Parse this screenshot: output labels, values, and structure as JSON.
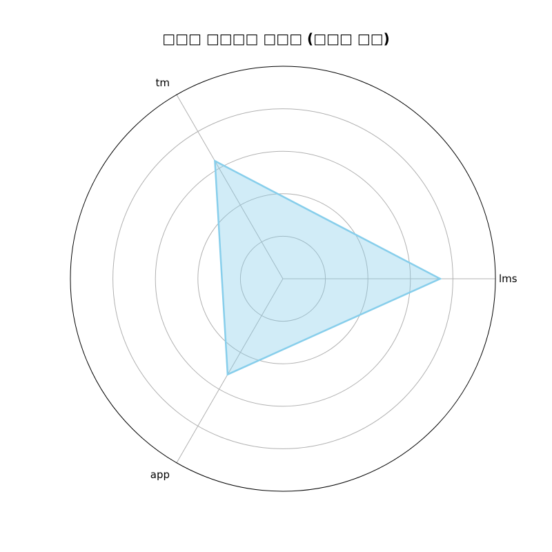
{
  "chart_data": {
    "type": "radar",
    "title": "□□□ □□□□ □□□ (□□□ □□)",
    "categories": [
      "lms",
      "tm",
      "app"
    ],
    "series": [
      {
        "values": [
          3.7,
          3.2,
          2.6
        ]
      }
    ],
    "rlim": [
      0,
      5
    ],
    "rticks": [
      1,
      2,
      3,
      4,
      5
    ],
    "grid": true,
    "colors": {
      "series_line": "#87ceeb",
      "series_fill": "#87ceeb",
      "grid": "#b0b0b0",
      "frame": "#000000"
    }
  }
}
